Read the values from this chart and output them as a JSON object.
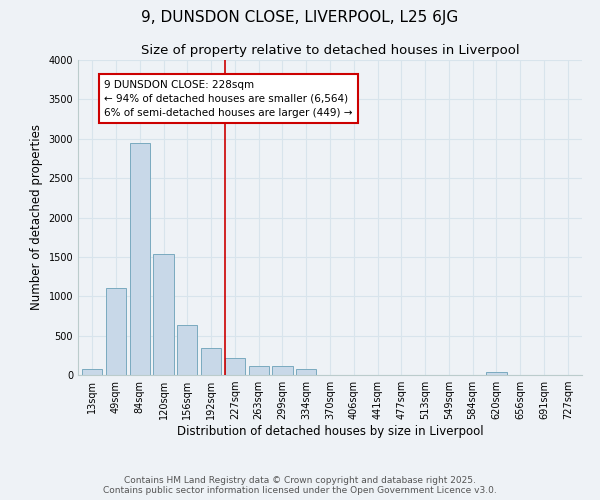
{
  "title_line1": "9, DUNSDON CLOSE, LIVERPOOL, L25 6JG",
  "title_line2": "Size of property relative to detached houses in Liverpool",
  "xlabel": "Distribution of detached houses by size in Liverpool",
  "ylabel": "Number of detached properties",
  "categories": [
    "13sqm",
    "49sqm",
    "84sqm",
    "120sqm",
    "156sqm",
    "192sqm",
    "227sqm",
    "263sqm",
    "299sqm",
    "334sqm",
    "370sqm",
    "406sqm",
    "441sqm",
    "477sqm",
    "513sqm",
    "549sqm",
    "584sqm",
    "620sqm",
    "656sqm",
    "691sqm",
    "727sqm"
  ],
  "values": [
    75,
    1100,
    2950,
    1540,
    630,
    340,
    210,
    120,
    110,
    80,
    0,
    0,
    0,
    0,
    0,
    0,
    0,
    40,
    0,
    0,
    0
  ],
  "bar_color": "#c8d8e8",
  "bar_edgecolor": "#7aaabf",
  "grid_color": "#d8e4ec",
  "background_color": "#eef2f6",
  "vline_color": "#cc0000",
  "annotation_text": "9 DUNSDON CLOSE: 228sqm\n← 94% of detached houses are smaller (6,564)\n6% of semi-detached houses are larger (449) →",
  "annotation_box_color": "#ffffff",
  "annotation_box_edgecolor": "#cc0000",
  "ylim": [
    0,
    4000
  ],
  "yticks": [
    0,
    500,
    1000,
    1500,
    2000,
    2500,
    3000,
    3500,
    4000
  ],
  "footer_line1": "Contains HM Land Registry data © Crown copyright and database right 2025.",
  "footer_line2": "Contains public sector information licensed under the Open Government Licence v3.0.",
  "title_fontsize": 11,
  "subtitle_fontsize": 9.5,
  "tick_fontsize": 7,
  "label_fontsize": 8.5,
  "footer_fontsize": 6.5,
  "annotation_fontsize": 7.5
}
